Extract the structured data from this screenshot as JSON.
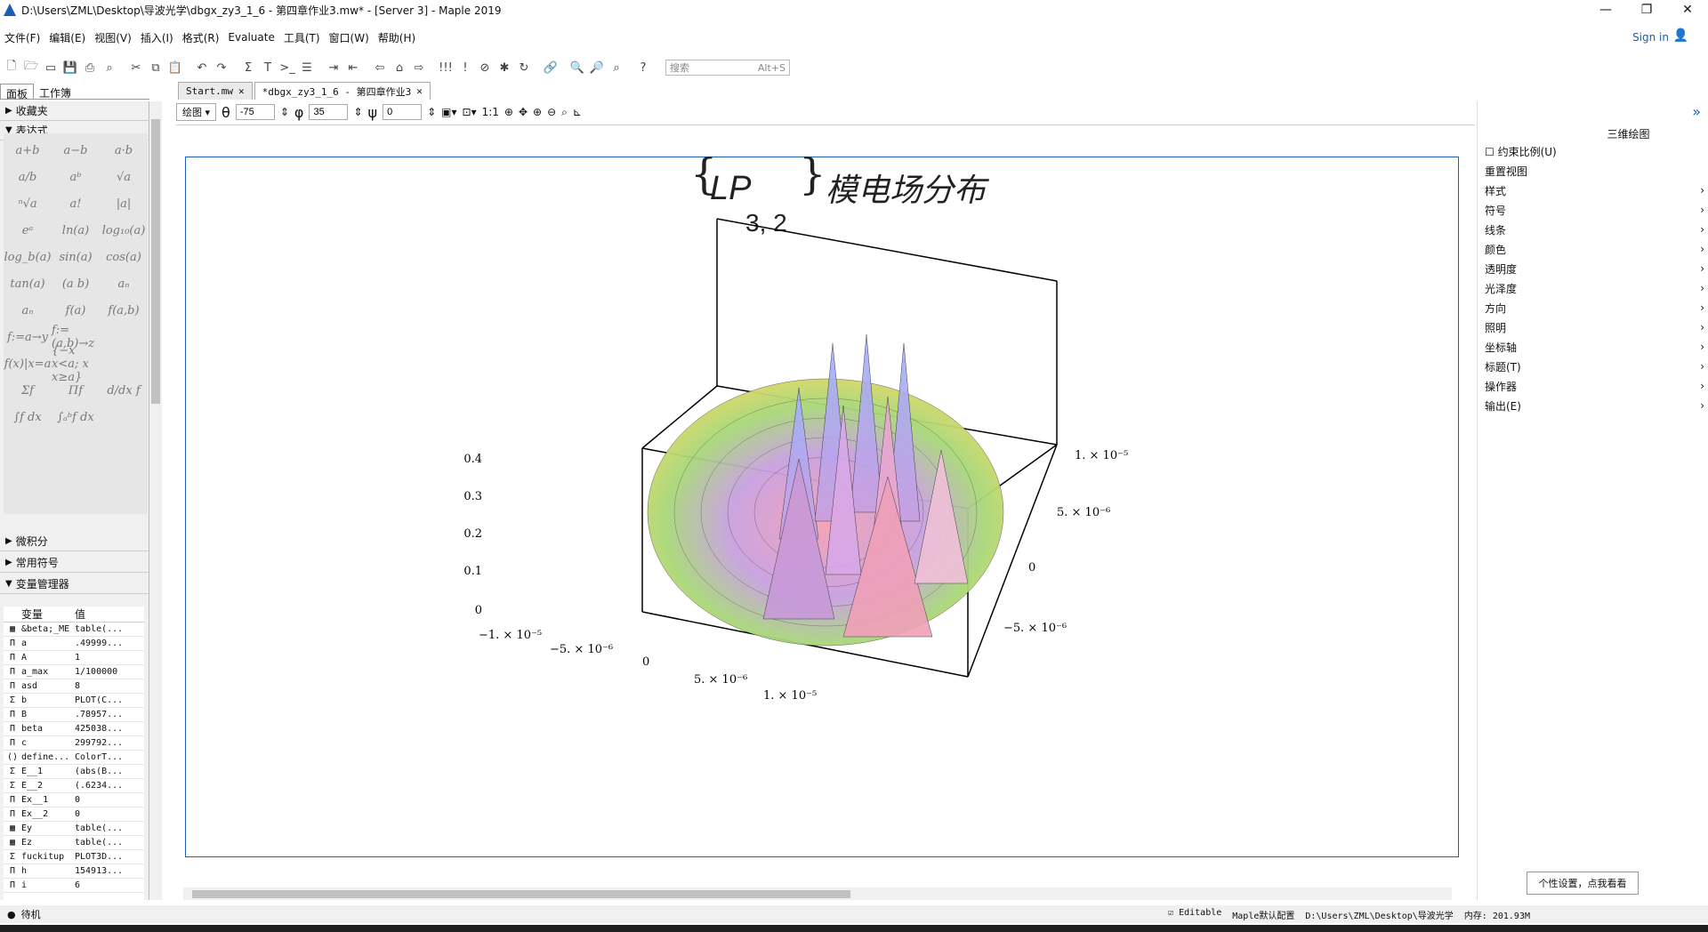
{
  "window": {
    "title": "D:\\Users\\ZML\\Desktop\\导波光学\\dbgx_zy3_1_6 - 第四章作业3.mw* - [Server 3] - Maple 2019",
    "minimize": "—",
    "maximize": "❐",
    "close": "✕"
  },
  "menu": {
    "items": [
      "文件(F)",
      "编辑(E)",
      "视图(V)",
      "插入(I)",
      "格式(R)",
      "Evaluate",
      "工具(T)",
      "窗口(W)",
      "帮助(H)"
    ],
    "signin": "Sign in"
  },
  "toolbar": {
    "search_placeholder": "搜索",
    "search_shortcut": "Alt+S"
  },
  "left_tabs": [
    "面板",
    "工作簿"
  ],
  "left_sections": {
    "favorites": "收藏夹",
    "expressions": "表达式",
    "calculus": "微积分",
    "common_symbols": "常用符号",
    "var_manager": "变量管理器"
  },
  "palette": [
    "a+b",
    "a−b",
    "a·b",
    "a/b",
    "aᵇ",
    "√a",
    "ⁿ√a",
    "a!",
    "|a|",
    "eᵃ",
    "ln(a)",
    "log₁₀(a)",
    "log_b(a)",
    "sin(a)",
    "cos(a)",
    "tan(a)",
    "(a b)",
    "aₙ",
    "aₙ",
    "f(a)",
    "f(a,b)",
    "f:=a→y",
    "f:=(a,b)→z",
    "",
    "f(x)|x=a",
    "{−x x<a; x x≥a}",
    "",
    "Σf",
    "Πf",
    "d/dx f",
    "∫f dx",
    "∫ₐᵇf dx",
    ""
  ],
  "variables": {
    "col_var": "变量",
    "col_val": "值",
    "rows": [
      {
        "t": "▦",
        "n": "&beta;_ME",
        "v": "table(..."
      },
      {
        "t": "П",
        "n": "a",
        "v": ".49999..."
      },
      {
        "t": "П",
        "n": "A",
        "v": "1"
      },
      {
        "t": "П",
        "n": "a_max",
        "v": "1/100000"
      },
      {
        "t": "П",
        "n": "asd",
        "v": "8"
      },
      {
        "t": "Σ",
        "n": "b",
        "v": "PLOT(C..."
      },
      {
        "t": "П",
        "n": "B",
        "v": ".78957..."
      },
      {
        "t": "П",
        "n": "beta",
        "v": "425038..."
      },
      {
        "t": "П",
        "n": "c",
        "v": "299792..."
      },
      {
        "t": "()",
        "n": "define...",
        "v": "ColorT..."
      },
      {
        "t": "Σ",
        "n": "E__1",
        "v": "(abs(B..."
      },
      {
        "t": "Σ",
        "n": "E__2",
        "v": "(.6234..."
      },
      {
        "t": "П",
        "n": "Ex__1",
        "v": "0"
      },
      {
        "t": "П",
        "n": "Ex__2",
        "v": "0"
      },
      {
        "t": "▦",
        "n": "Ey",
        "v": "table(..."
      },
      {
        "t": "▦",
        "n": "Ez",
        "v": "table(..."
      },
      {
        "t": "Σ",
        "n": "fuckitup",
        "v": "PLOT3D..."
      },
      {
        "t": "П",
        "n": "h",
        "v": "154913..."
      },
      {
        "t": "П",
        "n": "i",
        "v": "6"
      }
    ]
  },
  "doc_tabs": [
    {
      "label": "Start.mw",
      "active": false
    },
    {
      "label": "*dbgx_zy3_1_6 - 第四章作业3",
      "active": true
    }
  ],
  "plot_toolbar": {
    "mode": "绘图",
    "theta_label": "θ",
    "theta": "-75",
    "phi_label": "φ",
    "phi": "35",
    "psi_label": "ψ",
    "psi": "0",
    "ratio": "1:1"
  },
  "plot": {
    "title_main": "LP",
    "title_sub": "3, 2",
    "title_suffix": "模电场分布",
    "z_ticks": [
      "0",
      "0.1",
      "0.2",
      "0.3",
      "0.4"
    ],
    "x_ticks": [
      "−1. × 10⁻⁵",
      "−5. × 10⁻⁶",
      "0",
      "5. × 10⁻⁶",
      "1. × 10⁻⁵"
    ],
    "y_ticks": [
      "1. × 10⁻⁵",
      "5. × 10⁻⁶",
      "0",
      "−5. × 10⁻⁶"
    ]
  },
  "right_panel": {
    "header": "三维绘图",
    "constrain": "约束比例(U)",
    "reset": "重置视图",
    "items": [
      "样式",
      "符号",
      "线条",
      "颜色",
      "透明度",
      "光泽度",
      "方向",
      "照明",
      "坐标轴",
      "标题(T)",
      "操作器",
      "输出(E)"
    ]
  },
  "status": {
    "state": "待机",
    "editable": "Editable",
    "profile": "Maple默认配置",
    "path": "D:\\Users\\ZML\\Desktop\\导波光学",
    "memory": "内存: 201.93M"
  },
  "tooltip": "个性设置，点我看看"
}
